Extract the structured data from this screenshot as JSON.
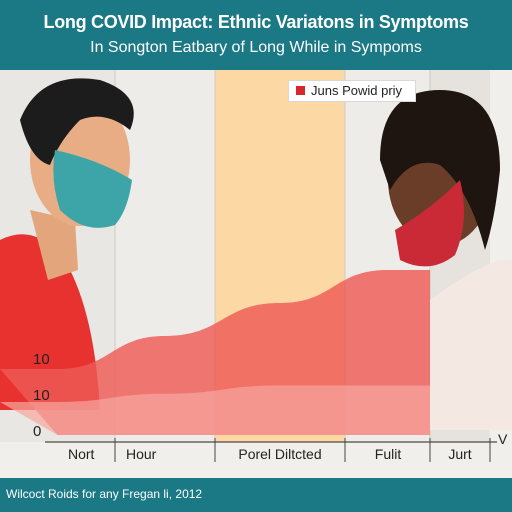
{
  "header": {
    "title": "Long COVID Impact: Ethnic Variatons in Symptoms",
    "subtitle": "In Songton Eatbary of Long While in Sympoms"
  },
  "footer": {
    "text": "Wilcoct Roids for any Fregan li, 2012"
  },
  "colors": {
    "header_bg": "#1b7885",
    "accent_red": "#d9262a",
    "highlight_band": "#fbd8a4"
  },
  "chart_data": {
    "type": "area",
    "title": "Long COVID Impact: Ethnic Variatons in Symptoms",
    "subtitle": "In Songton Eatbary of Long While in Sympoms",
    "categories": [
      "Nort",
      "Hour",
      "Porel Diltcted",
      "Fulit",
      "Jurt"
    ],
    "y_ticks": [
      "0",
      "10",
      "10"
    ],
    "x_end_label": "V",
    "legend": {
      "label": "Juns Powid priy",
      "position": "top-right"
    },
    "highlight_category": "Porel Diltcted",
    "series": [
      {
        "name": "Juns Powid priy",
        "color": "#ee5a55",
        "values": [
          4,
          6,
          8,
          10,
          10
        ]
      },
      {
        "color": "#f6a6a0",
        "values": [
          2,
          2.5,
          3,
          3,
          3
        ]
      }
    ],
    "ylim": [
      0,
      10
    ],
    "grid": true
  }
}
